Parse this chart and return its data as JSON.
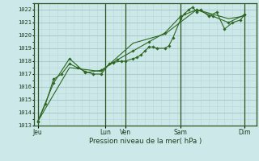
{
  "background_color": "#cce8e8",
  "grid_color_major": "#aacece",
  "grid_color_minor": "#bddada",
  "line_color": "#2d6620",
  "marker_color": "#2d6620",
  "xlabel": "Pression niveau de la mer( hPa )",
  "ylim": [
    1013,
    1022.5
  ],
  "yticks": [
    1013,
    1014,
    1015,
    1016,
    1017,
    1018,
    1019,
    1020,
    1021,
    1022
  ],
  "xlim": [
    0,
    28
  ],
  "day_labels": [
    "Jeu",
    "Lun",
    "Ven",
    "Sam",
    "Dim"
  ],
  "day_positions": [
    0.5,
    9.0,
    11.5,
    18.5,
    26.5
  ],
  "day_vlines": [
    0.5,
    9.0,
    11.5,
    18.5,
    26.5
  ],
  "series1": {
    "x": [
      0.5,
      1.5,
      2.5,
      3.5,
      4.5,
      5.5,
      6.5,
      7.5,
      8.5,
      9.5,
      10.0,
      11.0,
      11.5,
      12.5,
      13.0,
      13.5,
      14.0,
      14.5,
      15.0,
      15.5,
      16.5,
      17.0,
      17.5,
      18.5,
      19.0,
      19.5,
      20.0,
      20.5,
      21.0,
      22.0,
      23.0,
      24.0,
      25.0,
      26.0,
      26.5
    ],
    "y": [
      1013.3,
      1014.7,
      1016.6,
      1017.0,
      1017.8,
      1017.5,
      1017.2,
      1017.0,
      1017.0,
      1017.8,
      1017.9,
      1018.0,
      1018.0,
      1018.2,
      1018.3,
      1018.5,
      1018.8,
      1019.1,
      1019.1,
      1019.0,
      1019.0,
      1019.2,
      1019.8,
      1021.3,
      1021.7,
      1022.0,
      1022.2,
      1021.8,
      1022.0,
      1021.5,
      1021.8,
      1020.5,
      1021.0,
      1021.2,
      1021.6
    ]
  },
  "series2": {
    "x": [
      0.5,
      2.5,
      4.5,
      6.5,
      8.5,
      10.5,
      12.5,
      14.5,
      16.5,
      18.5,
      20.5,
      22.5,
      24.5,
      26.5
    ],
    "y": [
      1013.3,
      1016.3,
      1018.2,
      1017.1,
      1017.3,
      1018.1,
      1018.8,
      1019.5,
      1020.2,
      1021.5,
      1022.0,
      1021.5,
      1021.0,
      1021.6
    ]
  },
  "series3": {
    "x": [
      0.5,
      4.5,
      8.5,
      12.5,
      16.5,
      20.5,
      24.5,
      26.5
    ],
    "y": [
      1013.3,
      1017.5,
      1017.2,
      1019.4,
      1020.1,
      1022.0,
      1021.3,
      1021.5
    ]
  }
}
